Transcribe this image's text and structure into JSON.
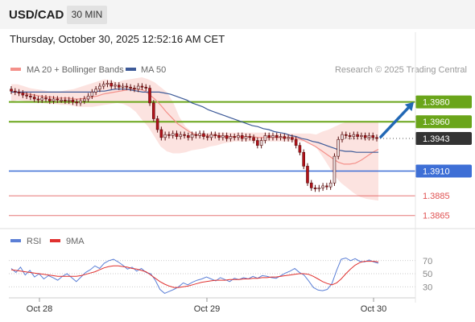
{
  "header": {
    "symbol": "USD/CAD",
    "timeframe": "30 MIN"
  },
  "datetime": "Thursday, October 30, 2025 12:52:16 AM CET",
  "legend": {
    "main": [
      {
        "name": "MA 20 + Bollinger Bands",
        "color": "#f4908a"
      },
      {
        "name": "MA 50",
        "color": "#3d5a98"
      }
    ],
    "rsi": [
      {
        "name": "RSI",
        "color": "#5b7fd6"
      },
      {
        "name": "9MA",
        "color": "#e0312f"
      }
    ]
  },
  "credit": "Research © 2025 Trading Central",
  "colors": {
    "resistance": "#6aa51a",
    "support": "#3e6fd6",
    "weak_support": "#e05252",
    "price_tag": "#333333",
    "arrow": "#2268b5"
  },
  "chart_data": [
    {
      "type": "candlestick",
      "y_range": [
        1.3855,
        1.4005
      ],
      "x_labels": [
        "Oct 28",
        "Oct 29",
        "Oct 30"
      ],
      "price_levels": [
        {
          "label": "1.3980",
          "value": 1.398,
          "kind": "resistance"
        },
        {
          "label": "1.3960",
          "value": 1.396,
          "kind": "resistance"
        },
        {
          "label": "1.3943",
          "value": 1.3943,
          "kind": "current"
        },
        {
          "label": "1.3910",
          "value": 1.391,
          "kind": "support"
        },
        {
          "label": "1.3885",
          "value": 1.3885,
          "kind": "weak-support"
        },
        {
          "label": "1.3865",
          "value": 1.3865,
          "kind": "weak-support"
        }
      ],
      "close": [
        1.3991,
        1.399,
        1.3989,
        1.3987,
        1.3986,
        1.3985,
        1.3983,
        1.3982,
        1.3984,
        1.3983,
        1.3981,
        1.3983,
        1.3982,
        1.3982,
        1.3981,
        1.3982,
        1.398,
        1.3979,
        1.3981,
        1.3983,
        1.3986,
        1.399,
        1.3993,
        1.3996,
        1.3998,
        1.3999,
        1.3996,
        1.3997,
        1.3995,
        1.3996,
        1.3995,
        1.3994,
        1.3993,
        1.3996,
        1.3995,
        1.3994,
        1.3979,
        1.3963,
        1.3952,
        1.3944,
        1.3947,
        1.3946,
        1.3948,
        1.3945,
        1.3947,
        1.3946,
        1.3944,
        1.3947,
        1.3946,
        1.3948,
        1.3945,
        1.3944,
        1.3947,
        1.3946,
        1.3944,
        1.3946,
        1.3943,
        1.3945,
        1.3944,
        1.3946,
        1.3943,
        1.3945,
        1.3944,
        1.3941,
        1.3936,
        1.3941,
        1.3946,
        1.3944,
        1.3946,
        1.3944,
        1.3945,
        1.3943,
        1.3944,
        1.3942,
        1.3936,
        1.3929,
        1.3915,
        1.3898,
        1.3893,
        1.3892,
        1.3893,
        1.3895,
        1.3894,
        1.3898,
        1.3925,
        1.3942,
        1.3947,
        1.3946,
        1.3945,
        1.3947,
        1.3945,
        1.3946,
        1.3944,
        1.3946,
        1.3944,
        1.3943
      ],
      "ma20": [
        1.399,
        1.399,
        1.3989,
        1.3988,
        1.3987,
        1.3986,
        1.3985,
        1.3985,
        1.3984,
        1.3984,
        1.3984,
        1.3983,
        1.3983,
        1.3984,
        1.3985,
        1.3986,
        1.3988,
        1.3989,
        1.399,
        1.3991,
        1.3992,
        1.3993,
        1.3993,
        1.3992,
        1.3988,
        1.3983,
        1.3977,
        1.397,
        1.3964,
        1.3958,
        1.3954,
        1.395,
        1.3947,
        1.3946,
        1.3946,
        1.3946,
        1.3946,
        1.3945,
        1.3945,
        1.3945,
        1.3945,
        1.3945,
        1.3945,
        1.3944,
        1.3944,
        1.3944,
        1.3944,
        1.3944,
        1.3944,
        1.3944,
        1.3943,
        1.3941,
        1.3938,
        1.3935,
        1.3931,
        1.3927,
        1.3923,
        1.3919,
        1.3917,
        1.3917,
        1.3918,
        1.3921,
        1.3925,
        1.3929,
        1.3932
      ],
      "ma50": [
        1.399,
        1.399,
        1.399,
        1.399,
        1.399,
        1.399,
        1.399,
        1.399,
        1.399,
        1.399,
        1.399,
        1.399,
        1.399,
        1.399,
        1.399,
        1.399,
        1.3991,
        1.3991,
        1.3992,
        1.3993,
        1.3993,
        1.3993,
        1.3992,
        1.3991,
        1.399,
        1.399,
        1.399,
        1.399,
        1.3989,
        1.3988,
        1.3986,
        1.3984,
        1.3982,
        1.3979,
        1.3977,
        1.3975,
        1.3972,
        1.397,
        1.3968,
        1.3966,
        1.3964,
        1.3962,
        1.396,
        1.3958,
        1.3956,
        1.3955,
        1.3953,
        1.3952,
        1.395,
        1.3949,
        1.3948,
        1.3946,
        1.3945,
        1.3943,
        1.3942,
        1.394,
        1.3939,
        1.3937,
        1.3935,
        1.3933,
        1.3931,
        1.393,
        1.393,
        1.3929,
        1.3929,
        1.3929,
        1.3929,
        1.3929
      ],
      "bb_upper": [
        1.3998,
        1.3998,
        1.3996,
        1.3994,
        1.3993,
        1.3992,
        1.3991,
        1.3991,
        1.3991,
        1.3992,
        1.3993,
        1.3995,
        1.3997,
        1.3999,
        1.4001,
        1.4003,
        1.4002,
        1.4,
        1.4002,
        1.4003,
        1.4004,
        1.4005,
        1.4003,
        1.4,
        1.3995,
        1.399,
        1.398,
        1.3965,
        1.3955,
        1.395,
        1.3948,
        1.3948,
        1.3949,
        1.3949,
        1.3949,
        1.3949,
        1.3949,
        1.3949,
        1.3949,
        1.3949,
        1.3949,
        1.3949,
        1.3948,
        1.3948,
        1.3948,
        1.3948,
        1.3948,
        1.3948,
        1.3948,
        1.3947,
        1.395,
        1.3952,
        1.3955,
        1.3958,
        1.396,
        1.396,
        1.396,
        1.396,
        1.396,
        1.396
      ],
      "bb_lower": [
        1.398,
        1.3982,
        1.3981,
        1.398,
        1.398,
        1.3979,
        1.3978,
        1.3978,
        1.3977,
        1.3977,
        1.3976,
        1.3975,
        1.3975,
        1.3975,
        1.3976,
        1.3977,
        1.3978,
        1.3979,
        1.3978,
        1.3975,
        1.397,
        1.3962,
        1.3955,
        1.3945,
        1.3935,
        1.393,
        1.3928,
        1.3928,
        1.3929,
        1.3931,
        1.3932,
        1.3933,
        1.3935,
        1.3936,
        1.3938,
        1.3939,
        1.394,
        1.394,
        1.394,
        1.394,
        1.394,
        1.394,
        1.394,
        1.394,
        1.394,
        1.394,
        1.394,
        1.394,
        1.3939,
        1.3934,
        1.3925,
        1.3915,
        1.3905,
        1.3898,
        1.3893,
        1.3888,
        1.3884,
        1.3882,
        1.3881,
        1.388
      ]
    },
    {
      "type": "line",
      "name": "RSI",
      "y_ticks": [
        "70",
        "50",
        "30"
      ],
      "y_tick_values": [
        70,
        50,
        30
      ],
      "y_range": [
        18,
        82
      ],
      "rsi": [
        58,
        52,
        60,
        48,
        55,
        45,
        50,
        42,
        47,
        44,
        40,
        46,
        50,
        44,
        38,
        45,
        52,
        56,
        62,
        58,
        66,
        70,
        72,
        68,
        63,
        57,
        60,
        54,
        58,
        52,
        50,
        40,
        26,
        20,
        23,
        26,
        30,
        36,
        33,
        37,
        40,
        42,
        45,
        42,
        39,
        44,
        41,
        38,
        43,
        41,
        44,
        42,
        46,
        43,
        47,
        46,
        44,
        43,
        47,
        51,
        54,
        58,
        52,
        48,
        39,
        29,
        25,
        24,
        26,
        35,
        55,
        72,
        74,
        70,
        73,
        69,
        68,
        71,
        68,
        66
      ],
      "ma9": [
        56,
        55,
        54,
        53,
        52,
        51,
        50,
        49,
        48,
        47,
        46,
        46,
        46,
        46,
        46,
        47,
        49,
        51,
        53,
        56,
        59,
        61,
        62,
        62,
        61,
        60,
        58,
        57,
        55,
        53,
        48,
        43,
        38,
        34,
        31,
        29,
        29,
        30,
        31,
        33,
        35,
        37,
        38,
        39,
        40,
        40,
        40,
        41,
        41,
        41,
        42,
        42,
        43,
        43,
        44,
        44,
        45,
        45,
        46,
        47,
        48,
        49,
        50,
        50,
        49,
        46,
        42,
        38,
        35,
        33,
        36,
        42,
        50,
        57,
        63,
        67,
        69,
        69,
        69,
        68
      ]
    }
  ]
}
